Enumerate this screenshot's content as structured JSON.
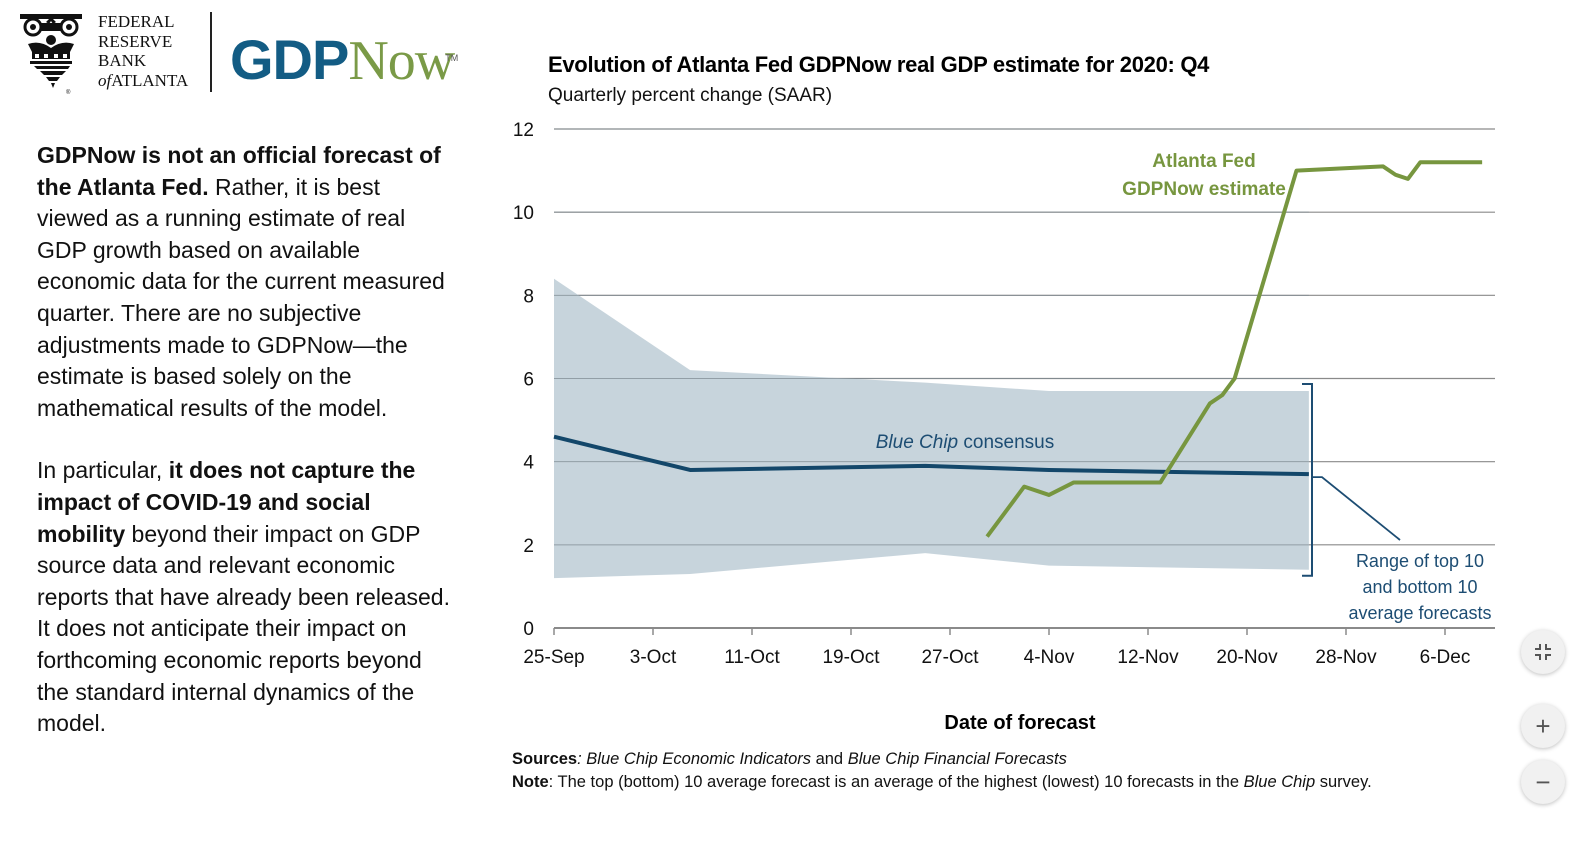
{
  "logo": {
    "bank_lines": [
      "FEDERAL",
      "RESERVE",
      "BANK"
    ],
    "bank_of": "of",
    "bank_city": "ATLANTA",
    "product_part1": "GDP",
    "product_part2": "Now",
    "trademark": "TM",
    "colors": {
      "gdp": "#135c84",
      "now": "#7a9a47"
    }
  },
  "disclaimer": {
    "p1_bold": "GDPNow is not an official forecast of the Atlanta Fed.",
    "p1_rest": " Rather, it is best viewed as a running estimate of real GDP growth based on available economic data for the current measured quarter. There are no subjective adjustments made to GDPNow—the estimate is based solely on the mathematical results of the model.",
    "p2_start": "In particular, ",
    "p2_bold": "it does not capture the impact of COVID-19 and social mobility",
    "p2_rest": " beyond their impact on GDP source data and relevant economic reports that have already been released. It does not anticipate their impact on forthcoming economic reports beyond the standard internal dynamics of the model."
  },
  "footer": {
    "sources_label": "Sources",
    "sources_sep": ": ",
    "source1": "Blue Chip Economic Indicators",
    "source_and": " and ",
    "source2": "Blue Chip Financial Forecasts",
    "note_label": "Note",
    "note_text": ": The top (bottom) 10 average forecast is an average of the highest (lowest) 10 forecasts in the ",
    "note_italic": "Blue Chip",
    "note_end": " survey."
  },
  "controls": {
    "collapse": "collapse-icon",
    "zoom_in": "+",
    "zoom_out": "−"
  },
  "chart_data": {
    "type": "line",
    "title": "Evolution of Atlanta Fed GDPNow real GDP estimate for 2020: Q4",
    "subtitle": "Quarterly percent change (SAAR)",
    "xlabel": "Date of forecast",
    "ylabel": "",
    "ylim": [
      0,
      12
    ],
    "yticks": [
      0,
      2,
      4,
      6,
      8,
      10,
      12
    ],
    "x_ticks": [
      "25-Sep",
      "3-Oct",
      "11-Oct",
      "19-Oct",
      "27-Oct",
      "4-Nov",
      "12-Nov",
      "20-Nov",
      "28-Nov",
      "6-Dec"
    ],
    "x_range_days": [
      0,
      76
    ],
    "x_origin": "2020-09-25",
    "grid": true,
    "colors": {
      "gdpnow": "#77963f",
      "consensus": "#13476a",
      "band": "#c4d2da",
      "annotation": "#1d4d73",
      "grid": "#8a8a8a"
    },
    "series": [
      {
        "name": "Atlanta Fed GDPNow estimate",
        "label_lines": [
          "Atlanta Fed",
          "GDPNow estimate"
        ],
        "type": "line",
        "x_days": [
          35,
          38,
          40,
          42,
          49,
          53,
          54,
          55,
          60,
          67,
          68,
          69,
          70,
          75
        ],
        "values": [
          2.2,
          3.4,
          3.2,
          3.5,
          3.5,
          5.4,
          5.6,
          6.0,
          11.0,
          11.1,
          10.9,
          10.8,
          11.2,
          11.2
        ]
      },
      {
        "name": "Blue Chip consensus",
        "label_italic": "Blue Chip",
        "label_rest": " consensus",
        "type": "line",
        "x_days": [
          0,
          11,
          30,
          40,
          61
        ],
        "values": [
          4.6,
          3.8,
          3.9,
          3.8,
          3.7
        ]
      },
      {
        "name": "Range of top 10 and bottom 10 average forecasts",
        "label_lines": [
          "Range of top 10",
          "and bottom 10",
          "average forecasts"
        ],
        "type": "area",
        "x_days": [
          0,
          11,
          30,
          40,
          61
        ],
        "top": [
          8.4,
          6.2,
          5.9,
          5.7,
          5.7
        ],
        "bottom": [
          1.2,
          1.3,
          1.8,
          1.5,
          1.4
        ]
      }
    ]
  }
}
